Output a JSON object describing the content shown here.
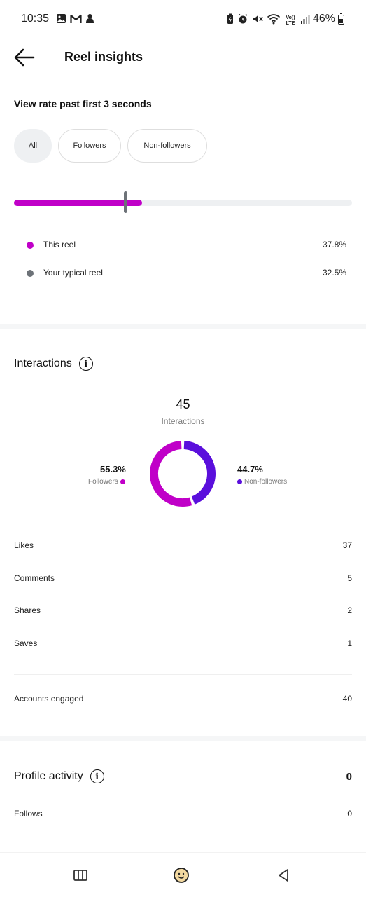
{
  "status_bar": {
    "time": "10:35",
    "battery": "46%",
    "left_icons": [
      "gallery-icon",
      "gmail-icon",
      "notification-icon"
    ],
    "right_icons": [
      "battery-saver-icon",
      "alarm-icon",
      "mute-icon",
      "wifi-icon",
      "volte-icon",
      "signal-icon"
    ],
    "volte_text": "Vo)) LTE"
  },
  "header": {
    "title": "Reel insights"
  },
  "view_rate": {
    "title": "View rate past first 3 seconds",
    "chips": [
      {
        "label": "All",
        "active": true
      },
      {
        "label": "Followers",
        "active": false
      },
      {
        "label": "Non-followers",
        "active": false
      }
    ],
    "this_reel_fraction": 0.378,
    "typical_reel_fraction": 0.325,
    "legend": [
      {
        "label": "This reel",
        "value": "37.8%",
        "color": "#c000c8"
      },
      {
        "label": "Your typical reel",
        "value": "32.5%",
        "color": "#6d7278"
      }
    ]
  },
  "interactions": {
    "title": "Interactions",
    "total": "45",
    "total_label": "Interactions",
    "followers_pct": "55.3%",
    "followers_label": "Followers",
    "followers_fraction": 0.553,
    "followers_color": "#c000c8",
    "nonfollowers_pct": "44.7%",
    "nonfollowers_label": "Non-followers",
    "nonfollowers_color": "#5a0fdc",
    "stats": [
      {
        "label": "Likes",
        "value": "37"
      },
      {
        "label": "Comments",
        "value": "5"
      },
      {
        "label": "Shares",
        "value": "2"
      },
      {
        "label": "Saves",
        "value": "1"
      }
    ],
    "accounts_engaged_label": "Accounts engaged",
    "accounts_engaged_value": "40"
  },
  "profile_activity": {
    "title": "Profile activity",
    "value": "0",
    "follows_label": "Follows",
    "follows_value": "0"
  },
  "nav_bar": {
    "items": [
      "recent-apps-icon",
      "home-icon",
      "back-icon"
    ]
  }
}
